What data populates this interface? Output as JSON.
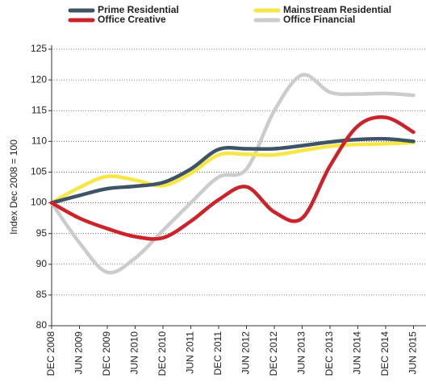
{
  "chart_data": {
    "type": "line",
    "y_label": "Index Dec 2008 = 100",
    "categories": [
      "DEC 2008",
      "JUN 2009",
      "DEC 2009",
      "JUN 2010",
      "DEC 2010",
      "JUN 2011",
      "DEC 2011",
      "JUN 2012",
      "DEC 2012",
      "JUN 2013",
      "DEC 2013",
      "JUN 2014",
      "DEC 2014",
      "JUN 2015"
    ],
    "ylim": [
      80,
      125
    ],
    "yticks": [
      80,
      85,
      90,
      95,
      100,
      105,
      110,
      115,
      120,
      125
    ],
    "grid": true,
    "series": [
      {
        "name": "Prime Residential",
        "color": "#3d5366",
        "values": [
          100,
          101.2,
          102.3,
          102.7,
          103.3,
          105.5,
          108.7,
          108.8,
          108.8,
          109.3,
          109.9,
          110.3,
          110.4,
          110.0
        ]
      },
      {
        "name": "Mainstream Residential",
        "color": "#f7e645",
        "values": [
          100,
          102.5,
          104.3,
          103.7,
          102.8,
          104.8,
          107.8,
          107.9,
          107.8,
          108.5,
          109.2,
          109.5,
          109.6,
          109.8
        ]
      },
      {
        "name": "Office Creative",
        "color": "#cc2229",
        "values": [
          100,
          97.5,
          95.8,
          94.5,
          94.3,
          97,
          100.5,
          102.6,
          98.5,
          97.5,
          106,
          112.5,
          113.9,
          111.5
        ]
      },
      {
        "name": "Office Financial",
        "color": "#cccccc",
        "values": [
          100,
          93.5,
          88.7,
          91,
          95.5,
          100,
          104.2,
          105.5,
          115,
          120.8,
          118,
          117.7,
          117.8,
          117.5
        ]
      }
    ]
  }
}
